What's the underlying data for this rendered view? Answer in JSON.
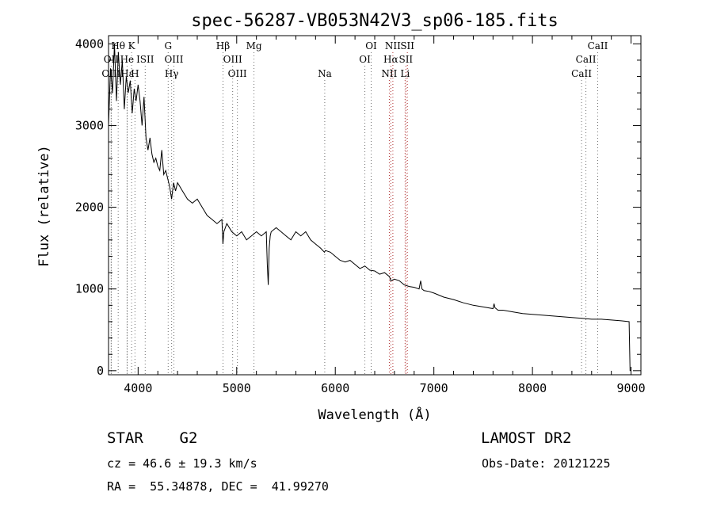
{
  "chart_data": {
    "type": "line",
    "title": "spec-56287-VB053N42V3_sp06-185.fits",
    "xlabel": "Wavelength (Å)",
    "ylabel": "Flux (relative)",
    "xlim": [
      3700,
      9100
    ],
    "ylim": [
      -50,
      4100
    ],
    "xticks": [
      4000,
      5000,
      6000,
      7000,
      8000,
      9000
    ],
    "yticks": [
      0,
      1000,
      2000,
      3000,
      4000
    ],
    "grid": false,
    "series": [
      {
        "x": [
          3700,
          3720,
          3740,
          3760,
          3780,
          3800,
          3820,
          3840,
          3860,
          3880,
          3900,
          3920,
          3940,
          3960,
          3980,
          4000,
          4020,
          4040,
          4060,
          4080,
          4100,
          4120,
          4140,
          4160,
          4180,
          4200,
          4220,
          4240,
          4260,
          4280,
          4300,
          4320,
          4340,
          4360,
          4380,
          4400,
          4450,
          4500,
          4550,
          4600,
          4650,
          4700,
          4750,
          4800,
          4850,
          4860,
          4870,
          4900,
          4950,
          5000,
          5050,
          5100,
          5150,
          5200,
          5250,
          5300,
          5310,
          5320,
          5330,
          5340,
          5350,
          5400,
          5450,
          5500,
          5550,
          5600,
          5650,
          5700,
          5750,
          5800,
          5850,
          5890,
          5900,
          5950,
          6000,
          6050,
          6100,
          6150,
          6200,
          6250,
          6300,
          6350,
          6400,
          6450,
          6500,
          6550,
          6563,
          6600,
          6650,
          6700,
          6750,
          6800,
          6850,
          6866,
          6880,
          6900,
          6950,
          7000,
          7100,
          7200,
          7300,
          7400,
          7500,
          7600,
          7610,
          7620,
          7650,
          7700,
          7800,
          7900,
          8000,
          8100,
          8200,
          8300,
          8400,
          8500,
          8600,
          8700,
          8800,
          8900,
          8980,
          8990,
          9000
        ],
        "y": [
          3000,
          3700,
          3400,
          4000,
          3300,
          3900,
          3500,
          3800,
          3200,
          3600,
          3400,
          3550,
          3150,
          3450,
          3300,
          3500,
          3300,
          3000,
          3350,
          2850,
          2700,
          2850,
          2650,
          2550,
          2600,
          2500,
          2450,
          2700,
          2400,
          2450,
          2350,
          2250,
          2100,
          2300,
          2200,
          2300,
          2200,
          2100,
          2050,
          2100,
          2000,
          1900,
          1850,
          1800,
          1850,
          1550,
          1700,
          1800,
          1700,
          1650,
          1700,
          1600,
          1650,
          1700,
          1650,
          1700,
          1300,
          1050,
          1500,
          1650,
          1700,
          1750,
          1700,
          1650,
          1600,
          1700,
          1650,
          1700,
          1600,
          1550,
          1500,
          1450,
          1470,
          1450,
          1400,
          1350,
          1330,
          1350,
          1300,
          1250,
          1280,
          1230,
          1220,
          1180,
          1200,
          1150,
          1100,
          1120,
          1100,
          1050,
          1030,
          1020,
          1000,
          1100,
          1000,
          980,
          970,
          950,
          900,
          870,
          830,
          800,
          780,
          760,
          820,
          770,
          740,
          740,
          720,
          700,
          690,
          680,
          670,
          660,
          650,
          640,
          630,
          630,
          620,
          610,
          600,
          0,
          0
        ]
      }
    ],
    "spectral_lines": [
      {
        "label": "Hθ",
        "x": 3798,
        "row": 0
      },
      {
        "label": "K",
        "x": 3934,
        "row": 0
      },
      {
        "label": "G",
        "x": 4305,
        "row": 0
      },
      {
        "label": "Hβ",
        "x": 4861,
        "row": 0
      },
      {
        "label": "Mg",
        "x": 5175,
        "row": 0
      },
      {
        "label": "OI",
        "x": 6364,
        "row": 0
      },
      {
        "label": "NII",
        "x": 6584,
        "row": 0
      },
      {
        "label": "SII",
        "x": 6731,
        "row": 0
      },
      {
        "label": "CaII",
        "x": 8662,
        "row": 0
      },
      {
        "label": "OII",
        "x": 3727,
        "row": 1
      },
      {
        "label": "He",
        "x": 3888,
        "row": 1
      },
      {
        "label": "ISII",
        "x": 4072,
        "row": 1
      },
      {
        "label": "OIII",
        "x": 4363,
        "row": 1
      },
      {
        "label": "OIII",
        "x": 4959,
        "row": 1
      },
      {
        "label": "OI",
        "x": 6300,
        "row": 1
      },
      {
        "label": "Hα",
        "x": 6563,
        "row": 1
      },
      {
        "label": "SII",
        "x": 6716,
        "row": 1
      },
      {
        "label": "CaII",
        "x": 8542,
        "row": 1
      },
      {
        "label": "OIII",
        "x": 3727,
        "row": 2
      },
      {
        "label": "Hε",
        "x": 3889,
        "row": 2
      },
      {
        "label": "H",
        "x": 3968,
        "row": 2
      },
      {
        "label": "Hγ",
        "x": 4340,
        "row": 2
      },
      {
        "label": "OIII",
        "x": 5007,
        "row": 2
      },
      {
        "label": "Na",
        "x": 5893,
        "row": 2
      },
      {
        "label": "NII",
        "x": 6548,
        "row": 2
      },
      {
        "label": "Li",
        "x": 6708,
        "row": 2
      },
      {
        "label": "CaII",
        "x": 8498,
        "row": 2
      }
    ]
  },
  "info": {
    "star_class": "STAR    G2",
    "survey": "LAMOST DR2",
    "cz": "cz = 46.6 ± 19.3 km/s",
    "obs_date": "Obs-Date: 20121225",
    "coords": "RA =  55.34878, DEC =  41.99270"
  }
}
